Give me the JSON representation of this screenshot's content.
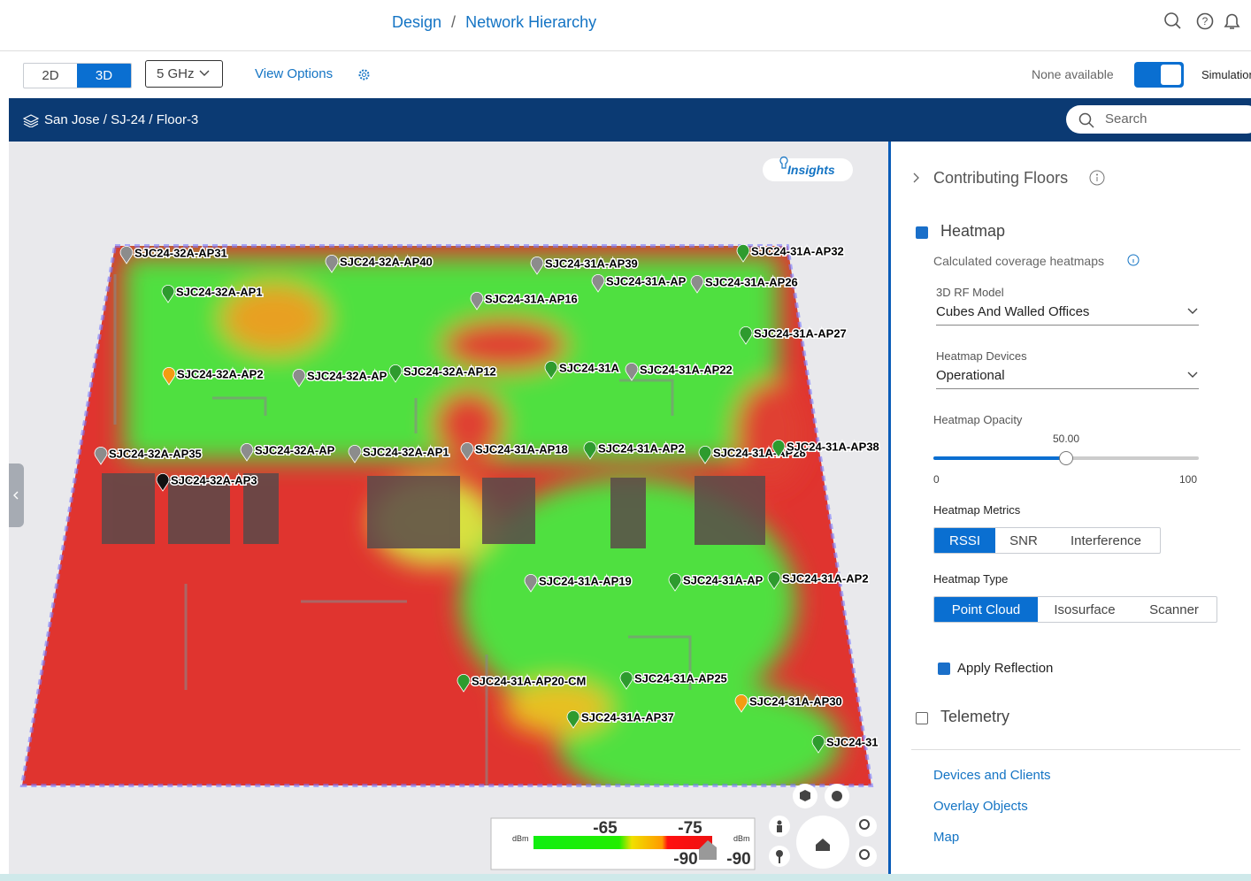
{
  "header": {
    "breadcrumb": [
      "Design",
      "Network Hierarchy"
    ],
    "separator": "/"
  },
  "toolbar": {
    "view_modes": [
      "2D",
      "3D"
    ],
    "band": "5 GHz",
    "view_options": "View Options",
    "simulation_status": "None available",
    "simulation": "Simulation"
  },
  "location": {
    "path": [
      "San Jose",
      "SJ-24",
      "Floor-3"
    ],
    "separator": "/",
    "search_placeholder": "Search"
  },
  "map": {
    "insights": "Insights",
    "access_points": [
      "SJC24-32A-AP31",
      "SJC24-32A-AP40",
      "SJC24-31A-AP39",
      "SJC24-31A-AP32",
      "SJC24-32A-AP1",
      "SJC24-31A-AP",
      "SJC24-31A-AP26",
      "SJC24-31A-AP16",
      "SJC24-31A-AP27",
      "SJC24-32A-AP2",
      "SJC24-32A-AP",
      "SJC24-32A-AP12",
      "SJC24-31A",
      "SJC24-31A-AP22",
      "SJC24-32A-AP35",
      "SJC24-32A-AP",
      "SJC24-32A-AP1",
      "SJC24-31A-AP18",
      "SJC24-31A-AP2",
      "SJC24-31A-AP28",
      "SJC24-31A-AP38",
      "SJC24-32A-AP3",
      "SJC24-31A-AP19",
      "SJC24-31A-AP",
      "SJC24-31A-AP2",
      "SJC24-31A-AP20-CM",
      "SJC24-31A-AP25",
      "SJC24-31A-AP30",
      "SJC24-31A-AP37",
      "SJC24-31"
    ],
    "legend": {
      "unit": "dBm",
      "upper": [
        "-65",
        "-75"
      ],
      "lower": [
        "-90",
        "-90"
      ]
    }
  },
  "panel": {
    "contributing_floors": "Contributing Floors",
    "heatmap": "Heatmap",
    "heatmap_note": "Calculated coverage heatmaps",
    "rf_model": {
      "label": "3D RF Model",
      "value": "Cubes And Walled Offices"
    },
    "devices": {
      "label": "Heatmap Devices",
      "value": "Operational"
    },
    "opacity": {
      "label": "Heatmap Opacity",
      "value": "50.00",
      "min": "0",
      "max": "100"
    },
    "metrics": {
      "label": "Heatmap Metrics",
      "options": [
        "RSSI",
        "SNR",
        "Interference"
      ]
    },
    "type": {
      "label": "Heatmap Type",
      "options": [
        "Point Cloud",
        "Isosurface",
        "Scanner"
      ]
    },
    "apply_reflection": "Apply Reflection",
    "telemetry": "Telemetry",
    "links": [
      "Devices and Clients",
      "Overlay Objects",
      "Map"
    ]
  }
}
